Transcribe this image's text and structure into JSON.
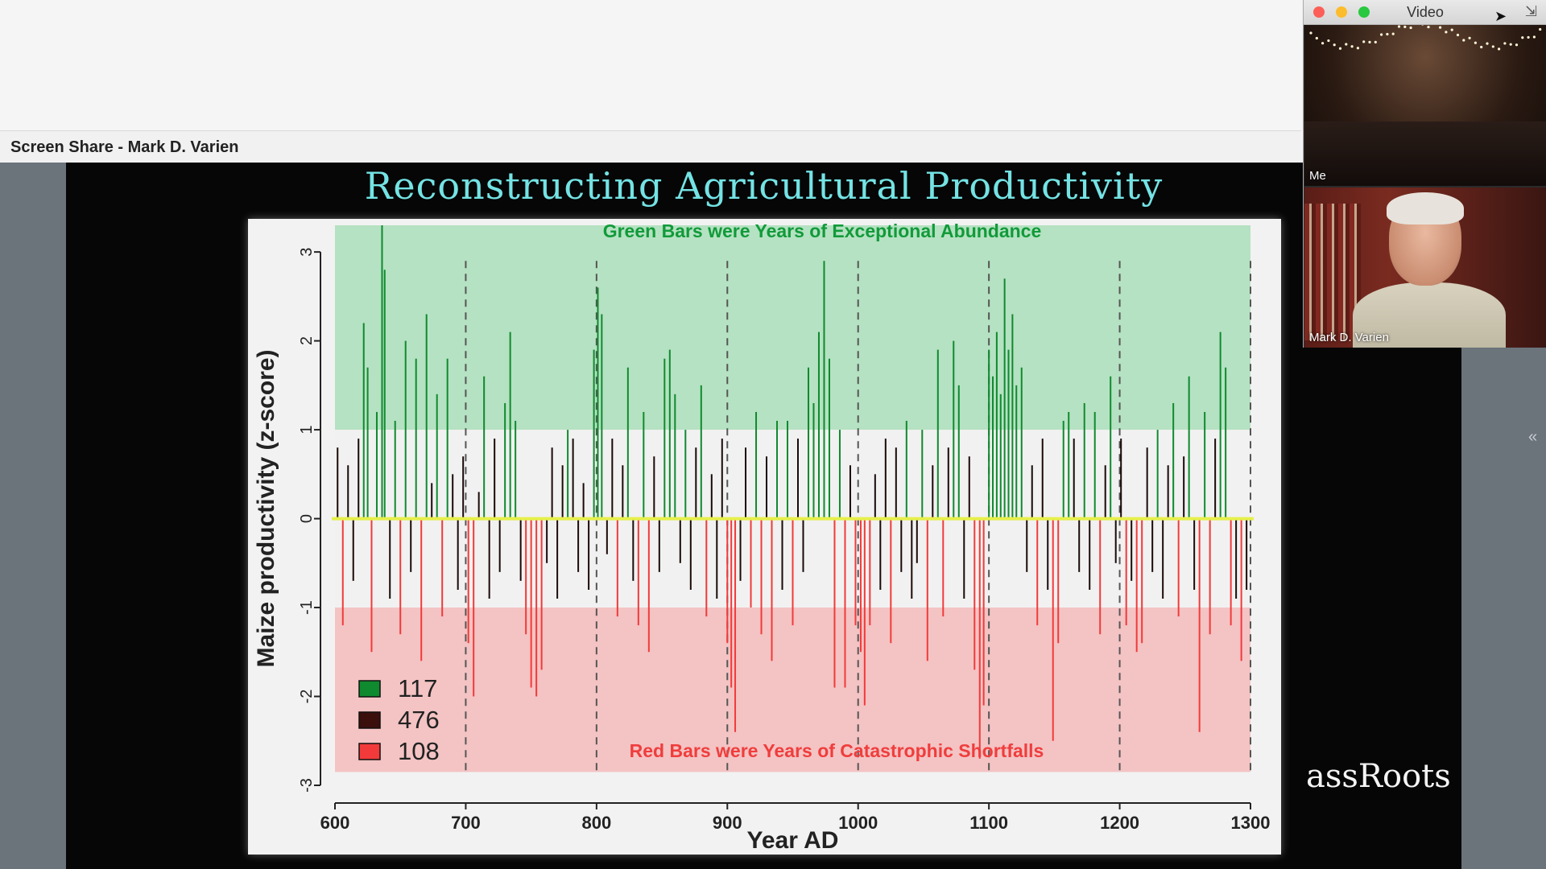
{
  "screen_share": {
    "label": "Screen Share - Mark D. Varien"
  },
  "slide": {
    "title": "Reconstructing Agricultural Productivity",
    "watermark": "assRoots"
  },
  "video_window": {
    "title": "Video",
    "tiles": [
      {
        "label": "Me"
      },
      {
        "label": "Mark D. Varien"
      }
    ]
  },
  "colors": {
    "abundance": "#0f8a2e",
    "normal": "#1a0a08",
    "shortfall": "#f23a3a",
    "zero_line": "#e6f04a",
    "green_band": "#b5e2c2",
    "red_band": "#f4c3c3"
  },
  "chart_data": {
    "type": "bar",
    "title": "",
    "top_annotation": "Green Bars were Years of Exceptional Abundance",
    "bottom_annotation": "Red Bars were Years of Catastrophic Shortfalls",
    "xlabel": "Year AD",
    "ylabel": "Maize productivity (z-score)",
    "xlim": [
      600,
      1300
    ],
    "ylim": [
      -3,
      3.3
    ],
    "xticks": [
      600,
      700,
      800,
      900,
      1000,
      1100,
      1200,
      1300
    ],
    "yticks": [
      -3,
      -2,
      -1,
      0,
      1,
      2,
      3
    ],
    "dashed_lines_at": [
      700,
      800,
      900,
      1000,
      1100,
      1200,
      1300
    ],
    "bands": [
      {
        "from": 1,
        "to": 3.3,
        "color": "green"
      },
      {
        "from": -2.85,
        "to": -1,
        "color": "red"
      }
    ],
    "legend": [
      {
        "color": "green",
        "count": "117"
      },
      {
        "color": "dark",
        "count": "476"
      },
      {
        "color": "red",
        "count": "108"
      }
    ],
    "series": [
      {
        "year": 602,
        "value": 0.8
      },
      {
        "year": 606,
        "value": -1.2
      },
      {
        "year": 610,
        "value": 0.6
      },
      {
        "year": 614,
        "value": -0.7
      },
      {
        "year": 618,
        "value": 0.9
      },
      {
        "year": 622,
        "value": 2.2
      },
      {
        "year": 625,
        "value": 1.7
      },
      {
        "year": 628,
        "value": -1.5
      },
      {
        "year": 632,
        "value": 1.2
      },
      {
        "year": 636,
        "value": 3.3
      },
      {
        "year": 638,
        "value": 2.8
      },
      {
        "year": 642,
        "value": -0.9
      },
      {
        "year": 646,
        "value": 1.1
      },
      {
        "year": 650,
        "value": -1.3
      },
      {
        "year": 654,
        "value": 2.0
      },
      {
        "year": 658,
        "value": -0.6
      },
      {
        "year": 662,
        "value": 1.8
      },
      {
        "year": 666,
        "value": -1.6
      },
      {
        "year": 670,
        "value": 2.3
      },
      {
        "year": 674,
        "value": 0.4
      },
      {
        "year": 678,
        "value": 1.4
      },
      {
        "year": 682,
        "value": -1.1
      },
      {
        "year": 686,
        "value": 1.8
      },
      {
        "year": 690,
        "value": 0.5
      },
      {
        "year": 694,
        "value": -0.8
      },
      {
        "year": 698,
        "value": 0.7
      },
      {
        "year": 702,
        "value": -1.4
      },
      {
        "year": 706,
        "value": -2.0
      },
      {
        "year": 710,
        "value": 0.3
      },
      {
        "year": 714,
        "value": 1.6
      },
      {
        "year": 718,
        "value": -0.9
      },
      {
        "year": 722,
        "value": 0.9
      },
      {
        "year": 726,
        "value": -0.6
      },
      {
        "year": 730,
        "value": 1.3
      },
      {
        "year": 734,
        "value": 2.1
      },
      {
        "year": 738,
        "value": 1.1
      },
      {
        "year": 742,
        "value": -0.7
      },
      {
        "year": 746,
        "value": -1.3
      },
      {
        "year": 750,
        "value": -1.9
      },
      {
        "year": 754,
        "value": -2.0
      },
      {
        "year": 758,
        "value": -1.7
      },
      {
        "year": 762,
        "value": -0.5
      },
      {
        "year": 766,
        "value": 0.8
      },
      {
        "year": 770,
        "value": -0.9
      },
      {
        "year": 774,
        "value": 0.6
      },
      {
        "year": 778,
        "value": 1.0
      },
      {
        "year": 782,
        "value": 0.9
      },
      {
        "year": 786,
        "value": -0.6
      },
      {
        "year": 790,
        "value": 0.4
      },
      {
        "year": 794,
        "value": -0.8
      },
      {
        "year": 798,
        "value": 1.9
      },
      {
        "year": 801,
        "value": 2.6
      },
      {
        "year": 804,
        "value": 2.3
      },
      {
        "year": 808,
        "value": -0.4
      },
      {
        "year": 812,
        "value": 0.9
      },
      {
        "year": 816,
        "value": -1.1
      },
      {
        "year": 820,
        "value": 0.6
      },
      {
        "year": 824,
        "value": 1.7
      },
      {
        "year": 828,
        "value": -0.7
      },
      {
        "year": 832,
        "value": -1.2
      },
      {
        "year": 836,
        "value": 1.2
      },
      {
        "year": 840,
        "value": -1.5
      },
      {
        "year": 844,
        "value": 0.7
      },
      {
        "year": 848,
        "value": -0.6
      },
      {
        "year": 852,
        "value": 1.8
      },
      {
        "year": 856,
        "value": 1.9
      },
      {
        "year": 860,
        "value": 1.4
      },
      {
        "year": 864,
        "value": -0.5
      },
      {
        "year": 868,
        "value": 1.0
      },
      {
        "year": 872,
        "value": -0.8
      },
      {
        "year": 876,
        "value": 0.8
      },
      {
        "year": 880,
        "value": 1.5
      },
      {
        "year": 884,
        "value": -1.1
      },
      {
        "year": 888,
        "value": 0.5
      },
      {
        "year": 892,
        "value": -0.9
      },
      {
        "year": 896,
        "value": 0.9
      },
      {
        "year": 900,
        "value": -1.4
      },
      {
        "year": 903,
        "value": -1.9
      },
      {
        "year": 906,
        "value": -2.4
      },
      {
        "year": 910,
        "value": -0.7
      },
      {
        "year": 914,
        "value": 0.8
      },
      {
        "year": 918,
        "value": -1.0
      },
      {
        "year": 922,
        "value": 1.2
      },
      {
        "year": 926,
        "value": -1.3
      },
      {
        "year": 930,
        "value": 0.7
      },
      {
        "year": 934,
        "value": -1.6
      },
      {
        "year": 938,
        "value": 1.1
      },
      {
        "year": 942,
        "value": -0.8
      },
      {
        "year": 946,
        "value": 1.1
      },
      {
        "year": 950,
        "value": -1.2
      },
      {
        "year": 954,
        "value": 0.9
      },
      {
        "year": 958,
        "value": -0.6
      },
      {
        "year": 962,
        "value": 1.7
      },
      {
        "year": 966,
        "value": 1.3
      },
      {
        "year": 970,
        "value": 2.1
      },
      {
        "year": 974,
        "value": 2.9
      },
      {
        "year": 978,
        "value": 1.8
      },
      {
        "year": 982,
        "value": -1.9
      },
      {
        "year": 986,
        "value": 1.0
      },
      {
        "year": 990,
        "value": -1.9
      },
      {
        "year": 994,
        "value": 0.6
      },
      {
        "year": 998,
        "value": -1.2
      },
      {
        "year": 1002,
        "value": -1.5
      },
      {
        "year": 1005,
        "value": -2.1
      },
      {
        "year": 1009,
        "value": -1.2
      },
      {
        "year": 1013,
        "value": 0.5
      },
      {
        "year": 1017,
        "value": -0.8
      },
      {
        "year": 1021,
        "value": 0.9
      },
      {
        "year": 1025,
        "value": -1.4
      },
      {
        "year": 1029,
        "value": 0.8
      },
      {
        "year": 1033,
        "value": -0.6
      },
      {
        "year": 1037,
        "value": 1.1
      },
      {
        "year": 1041,
        "value": -0.9
      },
      {
        "year": 1045,
        "value": -0.5
      },
      {
        "year": 1049,
        "value": 1.0
      },
      {
        "year": 1053,
        "value": -1.6
      },
      {
        "year": 1057,
        "value": 0.6
      },
      {
        "year": 1061,
        "value": 1.9
      },
      {
        "year": 1065,
        "value": -1.1
      },
      {
        "year": 1069,
        "value": 0.8
      },
      {
        "year": 1073,
        "value": 2.0
      },
      {
        "year": 1077,
        "value": 1.5
      },
      {
        "year": 1081,
        "value": -0.9
      },
      {
        "year": 1085,
        "value": 0.7
      },
      {
        "year": 1089,
        "value": -1.7
      },
      {
        "year": 1093,
        "value": -2.7
      },
      {
        "year": 1096,
        "value": -2.1
      },
      {
        "year": 1100,
        "value": 1.9
      },
      {
        "year": 1103,
        "value": 1.6
      },
      {
        "year": 1106,
        "value": 2.1
      },
      {
        "year": 1109,
        "value": 1.4
      },
      {
        "year": 1112,
        "value": 2.7
      },
      {
        "year": 1115,
        "value": 1.9
      },
      {
        "year": 1118,
        "value": 2.3
      },
      {
        "year": 1121,
        "value": 1.5
      },
      {
        "year": 1125,
        "value": 1.7
      },
      {
        "year": 1129,
        "value": -0.6
      },
      {
        "year": 1133,
        "value": 0.6
      },
      {
        "year": 1137,
        "value": -1.2
      },
      {
        "year": 1141,
        "value": 0.9
      },
      {
        "year": 1145,
        "value": -0.8
      },
      {
        "year": 1149,
        "value": -2.5
      },
      {
        "year": 1153,
        "value": -1.4
      },
      {
        "year": 1157,
        "value": 1.1
      },
      {
        "year": 1161,
        "value": 1.2
      },
      {
        "year": 1165,
        "value": 0.9
      },
      {
        "year": 1169,
        "value": -0.6
      },
      {
        "year": 1173,
        "value": 1.3
      },
      {
        "year": 1177,
        "value": -0.8
      },
      {
        "year": 1181,
        "value": 1.2
      },
      {
        "year": 1185,
        "value": -1.3
      },
      {
        "year": 1189,
        "value": 0.6
      },
      {
        "year": 1193,
        "value": 1.6
      },
      {
        "year": 1197,
        "value": -0.5
      },
      {
        "year": 1201,
        "value": 0.9
      },
      {
        "year": 1205,
        "value": -1.2
      },
      {
        "year": 1209,
        "value": -0.7
      },
      {
        "year": 1213,
        "value": -1.5
      },
      {
        "year": 1217,
        "value": -1.4
      },
      {
        "year": 1221,
        "value": 0.8
      },
      {
        "year": 1225,
        "value": -0.6
      },
      {
        "year": 1229,
        "value": 1.0
      },
      {
        "year": 1233,
        "value": -0.9
      },
      {
        "year": 1237,
        "value": 0.6
      },
      {
        "year": 1241,
        "value": 1.3
      },
      {
        "year": 1245,
        "value": -1.1
      },
      {
        "year": 1249,
        "value": 0.7
      },
      {
        "year": 1253,
        "value": 1.6
      },
      {
        "year": 1257,
        "value": -0.8
      },
      {
        "year": 1261,
        "value": -2.4
      },
      {
        "year": 1265,
        "value": 1.2
      },
      {
        "year": 1269,
        "value": -1.3
      },
      {
        "year": 1273,
        "value": 0.9
      },
      {
        "year": 1277,
        "value": 2.1
      },
      {
        "year": 1281,
        "value": 1.7
      },
      {
        "year": 1285,
        "value": -1.2
      },
      {
        "year": 1289,
        "value": -0.9
      },
      {
        "year": 1293,
        "value": -1.6
      },
      {
        "year": 1297,
        "value": -0.8
      }
    ]
  }
}
